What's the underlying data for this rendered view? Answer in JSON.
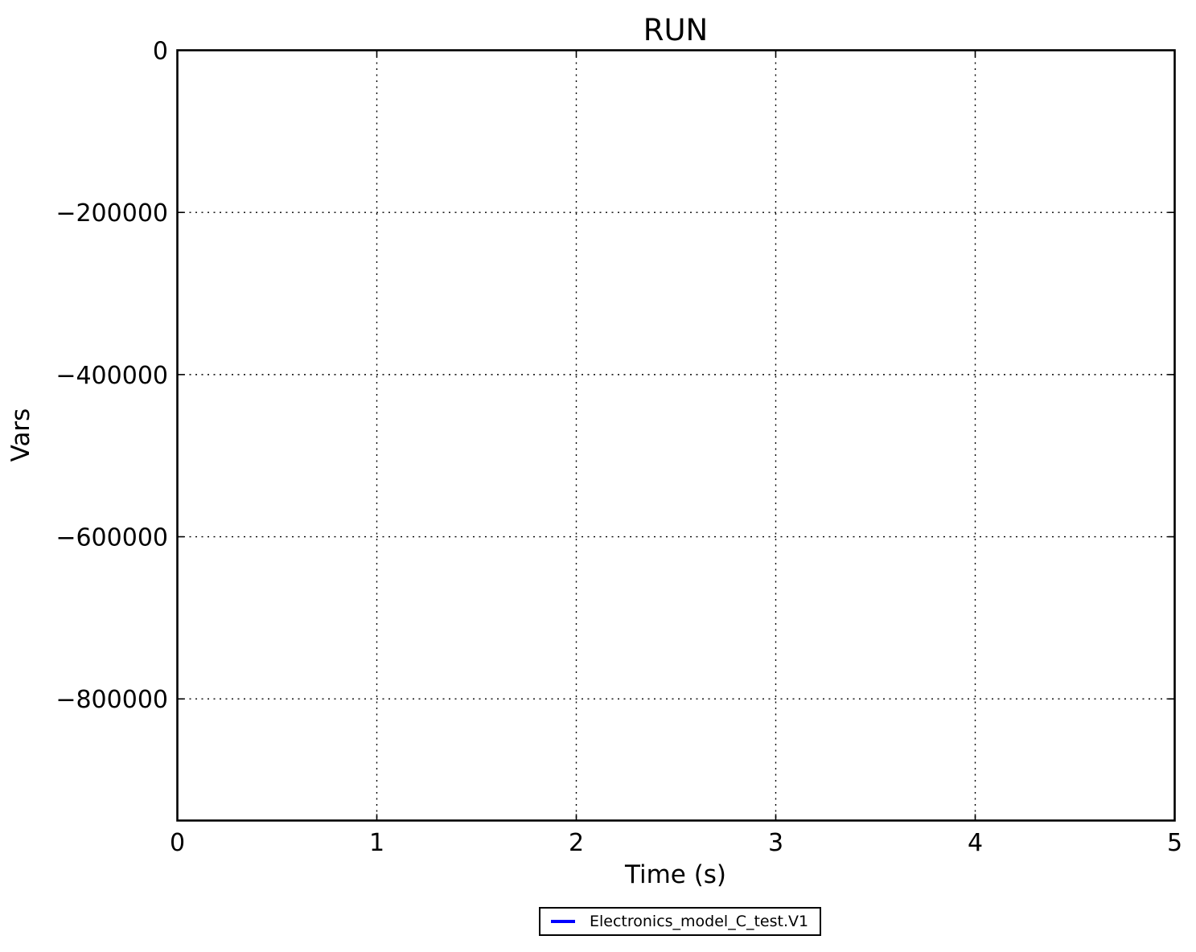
{
  "figure": {
    "background": "#ffffff"
  },
  "chart_data": {
    "type": "line",
    "title": "RUN",
    "xlabel": "Time (s)",
    "ylabel": "Vars",
    "xlim": [
      0,
      5
    ],
    "ylim": [
      -950000,
      0
    ],
    "xticks": [
      0,
      1,
      2,
      3,
      4,
      5
    ],
    "yticks": [
      0,
      -200000,
      -400000,
      -600000,
      -800000
    ],
    "xtick_labels": [
      "0",
      "1",
      "2",
      "3",
      "4",
      "5"
    ],
    "ytick_labels": [
      "0",
      "−200000",
      "−400000",
      "−600000",
      "−800000"
    ],
    "grid": true,
    "grid_style": "dotted",
    "legend": {
      "position": "bottom-center",
      "entries": [
        {
          "label": "Electronics_model_C_test.V1",
          "color": "#0000ff",
          "type": "line"
        }
      ]
    },
    "series": [
      {
        "name": "Electronics_model_C_test.V1",
        "color": "#0000ff",
        "x": [],
        "y": []
      }
    ],
    "colors": {
      "axis": "#000000",
      "text": "#000000",
      "grid": "#000000"
    }
  }
}
